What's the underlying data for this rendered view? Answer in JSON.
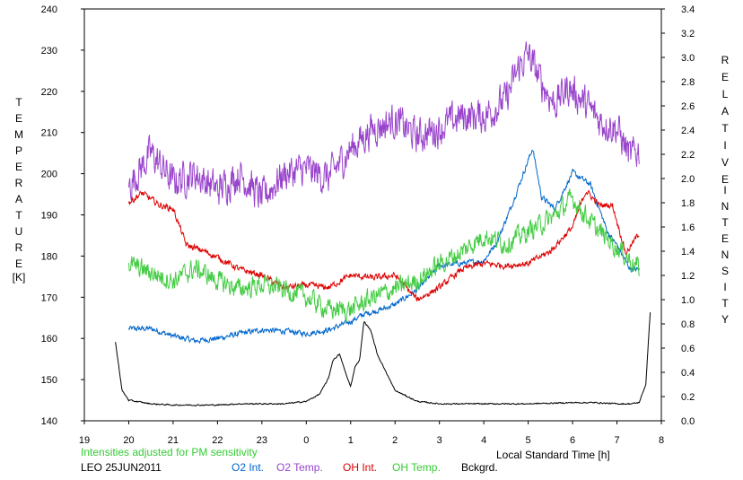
{
  "chart_data": {
    "type": "line",
    "xlabel": "Local Standard Time [h]",
    "ylabel_left": "T E M P E R A T U R E",
    "ylabel_left_unit": "[K]",
    "ylabel_right": "R E L A T I V E   I N T E N S I T Y",
    "x_ticks": [
      "19",
      "20",
      "21",
      "22",
      "23",
      "0",
      "1",
      "2",
      "3",
      "4",
      "5",
      "6",
      "7",
      "8"
    ],
    "xlim": [
      19,
      32
    ],
    "ylim_left": [
      140,
      240
    ],
    "ylim_right": [
      0.0,
      3.4
    ],
    "y_ticks_left": [
      140,
      150,
      160,
      170,
      180,
      190,
      200,
      210,
      220,
      230,
      240
    ],
    "y_ticks_right": [
      "0.0",
      "0.2",
      "0.4",
      "0.6",
      "0.8",
      "1.0",
      "1.2",
      "1.4",
      "1.6",
      "1.8",
      "2.0",
      "2.2",
      "2.4",
      "2.6",
      "2.8",
      "3.0",
      "3.2",
      "3.4"
    ],
    "grid": false,
    "series": [
      {
        "name": "O2 Int.",
        "axis": "right",
        "color": "#0066cc",
        "noise": 0.035,
        "x": [
          20.0,
          20.5,
          21.0,
          21.5,
          22.0,
          22.5,
          23.0,
          23.5,
          24.0,
          24.5,
          25.0,
          25.3,
          25.7,
          26.0,
          26.5,
          27.0,
          27.5,
          28.0,
          28.3,
          28.6,
          28.9,
          29.1,
          29.3,
          29.6,
          30.0,
          30.4,
          30.8,
          31.0,
          31.3,
          31.5
        ],
        "y": [
          0.76,
          0.76,
          0.7,
          0.66,
          0.68,
          0.72,
          0.75,
          0.74,
          0.72,
          0.75,
          0.82,
          0.88,
          0.92,
          0.96,
          1.08,
          1.28,
          1.3,
          1.32,
          1.48,
          1.75,
          2.05,
          2.25,
          1.85,
          1.75,
          2.05,
          1.95,
          1.55,
          1.45,
          1.25,
          1.25
        ]
      },
      {
        "name": "O2 Temp.",
        "axis": "left",
        "color": "#9944cc",
        "noise": 6.5,
        "x": [
          20.0,
          20.5,
          21.0,
          21.5,
          22.0,
          22.5,
          23.0,
          23.5,
          24.0,
          24.5,
          25.0,
          25.5,
          26.0,
          26.5,
          27.0,
          27.5,
          28.0,
          28.5,
          28.8,
          29.0,
          29.3,
          29.6,
          29.9,
          30.2,
          30.6,
          31.0,
          31.3,
          31.5
        ],
        "y": [
          197,
          205,
          198,
          200,
          196,
          200,
          194,
          200,
          201,
          199,
          206,
          211,
          213,
          209,
          211,
          214,
          214,
          218,
          226,
          229,
          222,
          217,
          221,
          218,
          213,
          211,
          204,
          206
        ]
      },
      {
        "name": "OH Int.",
        "axis": "right",
        "color": "#dd0000",
        "noise": 0.04,
        "x": [
          20.0,
          20.3,
          20.7,
          21.0,
          21.3,
          21.7,
          22.0,
          22.5,
          23.0,
          23.5,
          24.0,
          24.5,
          25.0,
          25.5,
          26.0,
          26.5,
          27.0,
          27.5,
          28.0,
          28.5,
          29.0,
          29.5,
          30.0,
          30.3,
          30.6,
          30.9,
          31.2,
          31.5
        ],
        "y": [
          1.8,
          1.88,
          1.78,
          1.75,
          1.45,
          1.4,
          1.35,
          1.25,
          1.2,
          1.1,
          1.12,
          1.1,
          1.2,
          1.18,
          1.2,
          1.0,
          1.1,
          1.25,
          1.3,
          1.28,
          1.3,
          1.4,
          1.6,
          1.9,
          1.78,
          1.78,
          1.38,
          1.55
        ]
      },
      {
        "name": "OH Temp.",
        "axis": "left",
        "color": "#44cc44",
        "noise": 3.8,
        "x": [
          20.0,
          20.5,
          21.0,
          21.5,
          22.0,
          22.5,
          23.0,
          23.5,
          24.0,
          24.5,
          25.0,
          25.5,
          26.0,
          26.5,
          27.0,
          27.5,
          28.0,
          28.5,
          29.0,
          29.5,
          30.0,
          30.5,
          31.0,
          31.5
        ],
        "y": [
          178,
          176,
          174,
          177,
          174,
          172,
          173,
          172,
          170,
          167,
          167,
          170,
          172,
          174,
          178,
          181,
          185,
          183,
          186,
          189,
          194,
          187,
          182,
          177
        ]
      },
      {
        "name": "Bckgrd.",
        "axis": "right",
        "color": "#000000",
        "noise": 0.008,
        "x": [
          19.7,
          19.85,
          20.0,
          20.5,
          21.0,
          21.5,
          22.0,
          22.5,
          23.0,
          23.5,
          24.0,
          24.3,
          24.5,
          24.6,
          24.75,
          24.9,
          25.0,
          25.1,
          25.2,
          25.3,
          25.45,
          25.6,
          25.8,
          26.0,
          26.5,
          27.0,
          28.0,
          29.0,
          30.0,
          30.5,
          31.0,
          31.3,
          31.5,
          31.65,
          31.75
        ],
        "y": [
          0.65,
          0.25,
          0.17,
          0.14,
          0.13,
          0.13,
          0.13,
          0.14,
          0.14,
          0.14,
          0.16,
          0.22,
          0.35,
          0.5,
          0.55,
          0.38,
          0.28,
          0.45,
          0.5,
          0.82,
          0.75,
          0.55,
          0.4,
          0.25,
          0.16,
          0.14,
          0.14,
          0.14,
          0.15,
          0.15,
          0.14,
          0.14,
          0.15,
          0.3,
          0.9
        ]
      }
    ]
  },
  "annotations": {
    "sensitivity_note": "Intensities adjusted for PM sensitivity",
    "site_date": "LEO 25JUN2011",
    "legend_o2_int": "O2 Int.",
    "legend_o2_temp": "O2 Temp.",
    "legend_oh_int": "OH Int.",
    "legend_oh_temp": "OH Temp.",
    "legend_bckgrd": "Bckgrd."
  }
}
